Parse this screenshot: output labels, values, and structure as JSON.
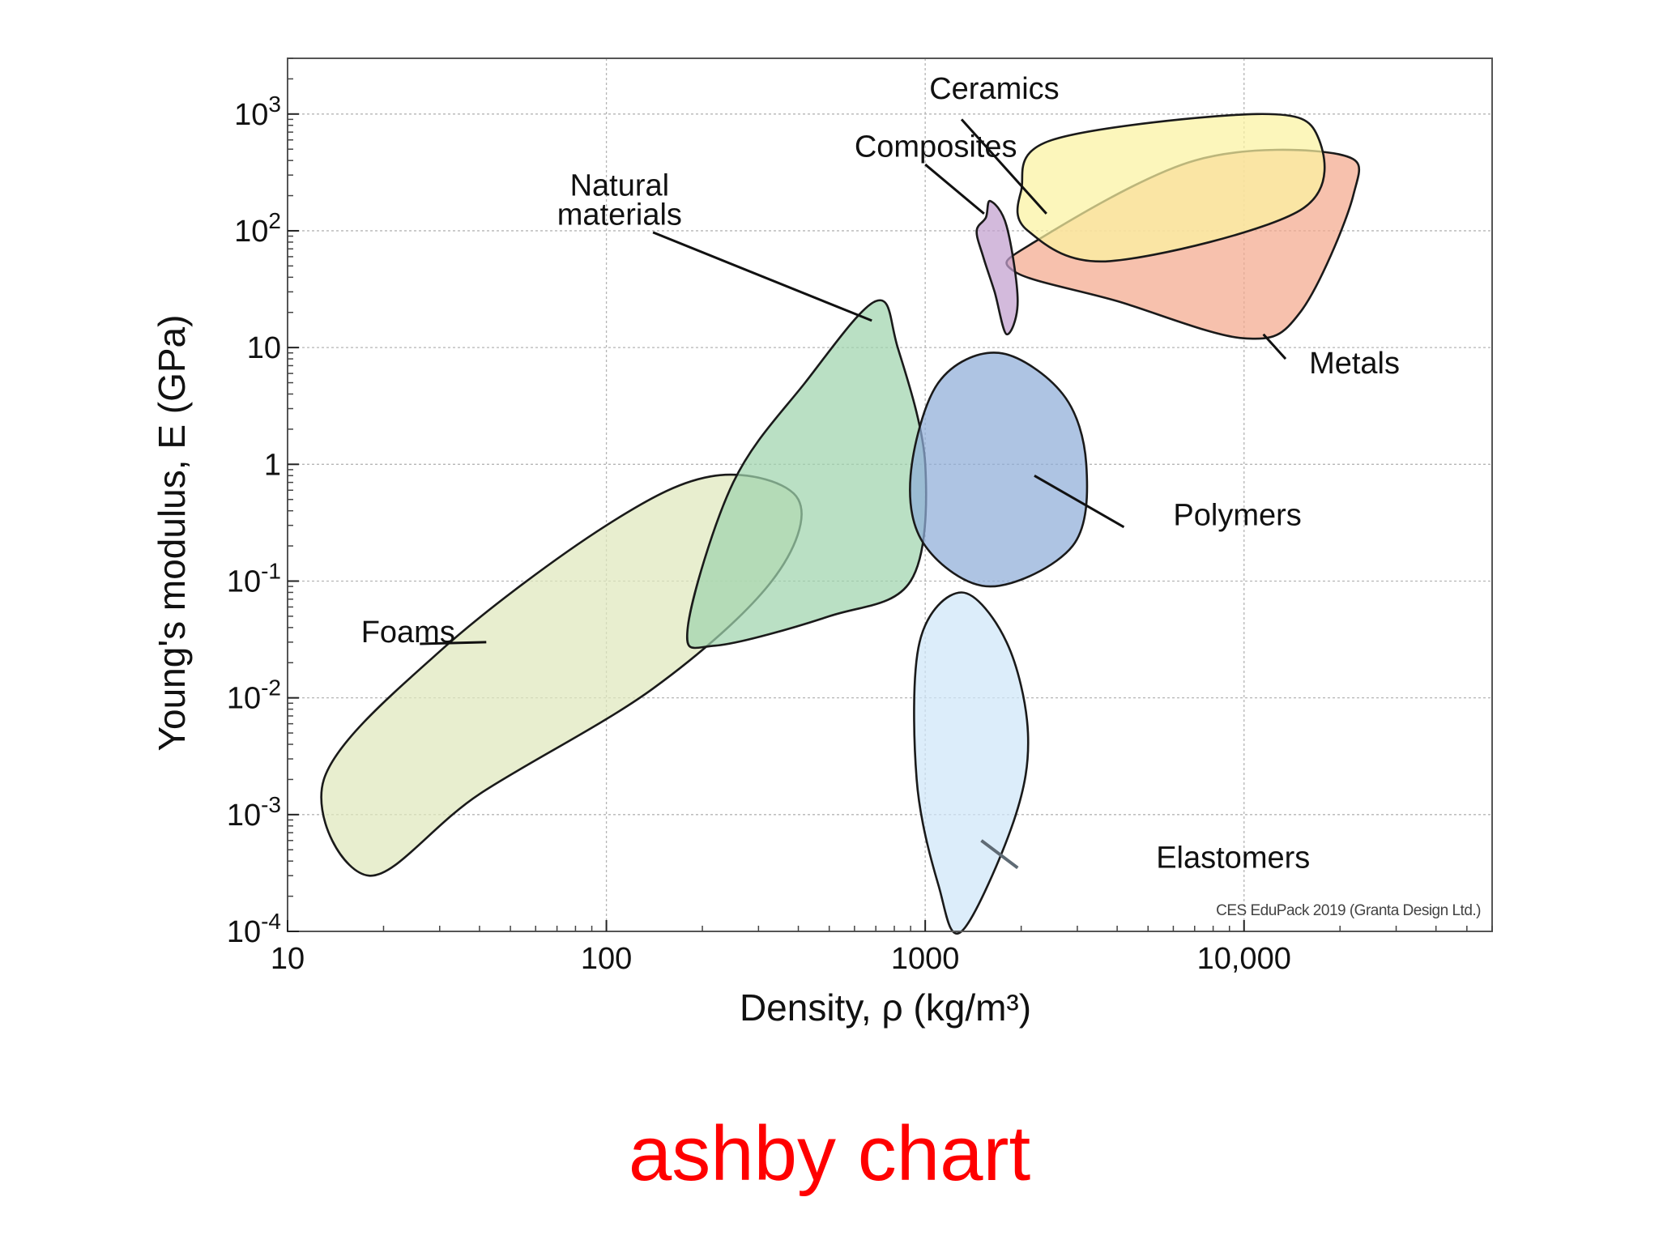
{
  "chart_data": {
    "type": "scatter",
    "subtype": "ashby-bubble",
    "title": "",
    "xlabel": "Density, ρ  (kg/m³)",
    "ylabel": "Young's modulus, E (GPa)",
    "xscale": "log",
    "yscale": "log",
    "xlim": [
      10,
      60000
    ],
    "ylim": [
      0.0001,
      3000
    ],
    "grid": true,
    "x_ticks": [
      {
        "value": 10,
        "label": "10"
      },
      {
        "value": 100,
        "label": "100"
      },
      {
        "value": 1000,
        "label": "1000"
      },
      {
        "value": 10000,
        "label": "10,000"
      }
    ],
    "y_ticks": [
      {
        "value": 0.0001,
        "base": "10",
        "exp": "-4"
      },
      {
        "value": 0.001,
        "base": "10",
        "exp": "-3"
      },
      {
        "value": 0.01,
        "base": "10",
        "exp": "-2"
      },
      {
        "value": 0.1,
        "base": "10",
        "exp": "-1"
      },
      {
        "value": 1,
        "base": "1",
        "exp": ""
      },
      {
        "value": 10,
        "base": "10",
        "exp": ""
      },
      {
        "value": 100,
        "base": "10",
        "exp": "2"
      },
      {
        "value": 1000,
        "base": "10",
        "exp": "3"
      }
    ],
    "regions": [
      {
        "name": "Foams",
        "color": "#dfe8bd",
        "points": [
          [
            18,
            0.0003
          ],
          [
            40,
            0.0015
          ],
          [
            140,
            0.012
          ],
          [
            330,
            0.1
          ],
          [
            400,
            0.5
          ],
          [
            220,
            0.8
          ],
          [
            100,
            0.3
          ],
          [
            30,
            0.025
          ],
          [
            13,
            0.002
          ]
        ],
        "label_at": [
          17,
          0.03
        ],
        "leader": [
          [
            26,
            0.029
          ],
          [
            42,
            0.03
          ]
        ]
      },
      {
        "name": "Natural\nmaterials",
        "color": "#9fd4ad",
        "points": [
          [
            220,
            0.028
          ],
          [
            500,
            0.05
          ],
          [
            900,
            0.1
          ],
          [
            1000,
            1
          ],
          [
            820,
            10
          ],
          [
            700,
            25
          ],
          [
            420,
            5
          ],
          [
            250,
            0.7
          ],
          [
            180,
            0.04
          ]
        ],
        "label_at": [
          110,
          200
        ],
        "leader": [
          [
            140,
            97
          ],
          [
            680,
            17
          ]
        ]
      },
      {
        "name": "Polymers",
        "color": "#8fadd8",
        "points": [
          [
            1600,
            0.09
          ],
          [
            2900,
            0.2
          ],
          [
            3200,
            1
          ],
          [
            2700,
            4
          ],
          [
            1700,
            9
          ],
          [
            1100,
            5
          ],
          [
            900,
            0.8
          ],
          [
            1000,
            0.2
          ]
        ],
        "label_at": [
          6000,
          0.3
        ],
        "leader": [
          [
            2200,
            0.8
          ],
          [
            4200,
            0.29
          ]
        ]
      },
      {
        "name": "Elastomers",
        "color": "#cfe6f8",
        "points": [
          [
            1300,
            0.0001
          ],
          [
            1900,
            0.0009
          ],
          [
            2100,
            0.005
          ],
          [
            1800,
            0.03
          ],
          [
            1300,
            0.08
          ],
          [
            960,
            0.03
          ],
          [
            940,
            0.002
          ],
          [
            1100,
            0.00025
          ]
        ],
        "label_at": [
          5300,
          0.00035
        ],
        "leader": [
          [
            1500,
            0.0006
          ],
          [
            1950,
            0.00035
          ]
        ]
      },
      {
        "name": "Metals",
        "color": "#f4a98e",
        "points": [
          [
            1900,
            45
          ],
          [
            4000,
            25
          ],
          [
            10000,
            12
          ],
          [
            15000,
            20
          ],
          [
            22000,
            200
          ],
          [
            20000,
            450
          ],
          [
            7000,
            400
          ],
          [
            2200,
            80
          ]
        ],
        "label_at": [
          16000,
          6
        ],
        "leader": [
          [
            11500,
            13
          ],
          [
            13500,
            8
          ]
        ]
      },
      {
        "name": "Ceramics",
        "color": "#fbf3a1",
        "points": [
          [
            2000,
            220
          ],
          [
            2100,
            100
          ],
          [
            3800,
            55
          ],
          [
            15000,
            150
          ],
          [
            17000,
            650
          ],
          [
            11000,
            1000
          ],
          [
            2500,
            600
          ]
        ],
        "label_at": [
          1030,
          1350
        ],
        "leader": [
          [
            1300,
            900
          ],
          [
            2400,
            140
          ]
        ]
      },
      {
        "name": "Composites",
        "color": "#c2a0cf",
        "points": [
          [
            1450,
            100
          ],
          [
            1550,
            130
          ],
          [
            1600,
            180
          ],
          [
            1800,
            110
          ],
          [
            1950,
            25
          ],
          [
            1800,
            13
          ],
          [
            1650,
            30
          ],
          [
            1520,
            60
          ]
        ],
        "label_at": [
          600,
          430
        ],
        "leader": [
          [
            1000,
            370
          ],
          [
            1530,
            140
          ]
        ]
      }
    ],
    "annotation": "CES EduPack 2019 (Granta Design Ltd.)"
  },
  "caption": "ashby chart"
}
